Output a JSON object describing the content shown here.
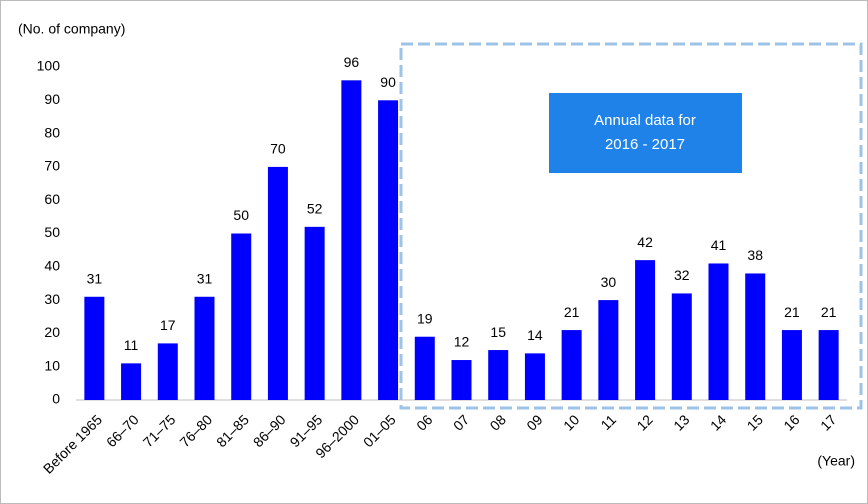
{
  "chart_data": {
    "type": "bar",
    "y_axis_label": "(No. of company)",
    "x_axis_label": "(Year)",
    "annotation": [
      "Annual data for",
      "2016 - 2017"
    ],
    "categories": [
      "Before 1965",
      "66‒70",
      "71‒75",
      "76‒80",
      "81‒85",
      "86‒90",
      "91‒95",
      "96‒2000",
      "01‒05",
      "06",
      "07",
      "08",
      "09",
      "10",
      "11",
      "12",
      "13",
      "14",
      "15",
      "16",
      "17"
    ],
    "values": [
      31,
      11,
      17,
      31,
      50,
      70,
      52,
      96,
      90,
      19,
      12,
      15,
      14,
      21,
      30,
      42,
      32,
      41,
      38,
      21,
      21
    ],
    "color": "#0000ff",
    "ylim": [
      0,
      100
    ],
    "yticks": [
      0,
      10,
      20,
      30,
      40,
      50,
      60,
      70,
      80,
      90,
      100
    ]
  }
}
